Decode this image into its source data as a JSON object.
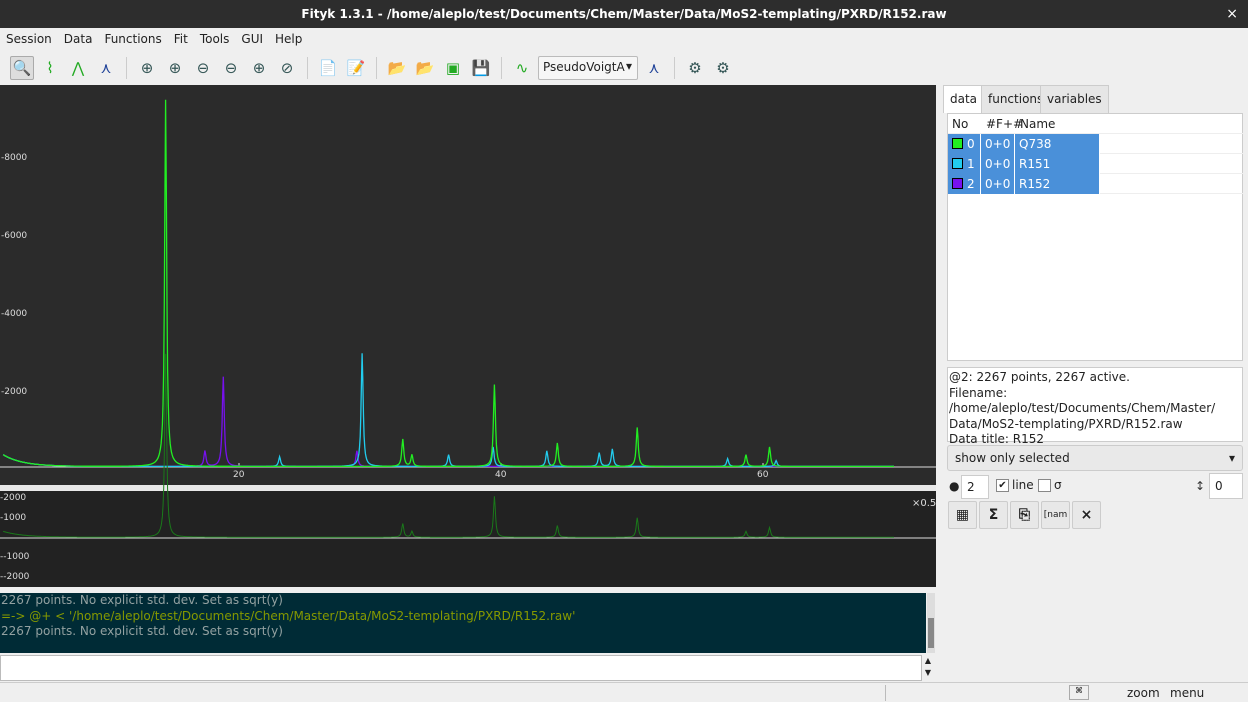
{
  "window": {
    "title": "Fityk 1.3.1 - /home/aleplo/test/Documents/Chem/Master/Data/MoS2-templating/PXRD/R152.raw",
    "close": "×"
  },
  "menu": [
    "Session",
    "Data",
    "Functions",
    "Fit",
    "Tools",
    "GUI",
    "Help"
  ],
  "toolbar": {
    "function_type": "PseudoVoigtA",
    "icons": [
      "zoom-mode",
      "range-mode",
      "add-peak-mode",
      "background-mode",
      "zoom-all",
      "zoom-vertical",
      "zoom-back",
      "zoom-forward",
      "zoom-fit",
      "zoom-prev",
      "script-edit",
      "edit-init",
      "open-data",
      "load-data",
      "save-data",
      "export-plot",
      "auto-add",
      "add-peak",
      "run-fit",
      "run-fit-cont"
    ]
  },
  "plot": {
    "scale_label": "×0.5",
    "main_y_ticks": [
      "8000",
      "6000",
      "4000",
      "2000"
    ],
    "x_ticks": [
      "20",
      "40",
      "60"
    ],
    "resid_y_ticks": [
      "2000",
      "1000",
      "-1000",
      "-2000"
    ]
  },
  "chart_data": {
    "type": "line",
    "xlim": [
      0,
      72
    ],
    "ylim": [
      0,
      10000
    ],
    "series": [
      {
        "name": "Q738",
        "color": "#22ee22",
        "peaks": [
          [
            14.4,
            9400
          ],
          [
            32.5,
            700
          ],
          [
            33.2,
            300
          ],
          [
            39.5,
            2100
          ],
          [
            44.3,
            600
          ],
          [
            50.4,
            1000
          ],
          [
            58.7,
            300
          ],
          [
            60.5,
            500
          ]
        ]
      },
      {
        "name": "R151",
        "color": "#22ccee",
        "peaks": [
          [
            23.1,
            250
          ],
          [
            29.4,
            2900
          ],
          [
            36.0,
            300
          ],
          [
            39.4,
            500
          ],
          [
            43.5,
            400
          ],
          [
            47.5,
            350
          ],
          [
            48.5,
            450
          ],
          [
            57.3,
            200
          ],
          [
            61.0,
            150
          ]
        ]
      },
      {
        "name": "R152",
        "color": "#7711ee",
        "peaks": [
          [
            17.4,
            400
          ],
          [
            18.8,
            2300
          ],
          [
            29.0,
            400
          ]
        ]
      }
    ]
  },
  "panel": {
    "tabs": [
      "data",
      "functions",
      "variables"
    ],
    "columns": [
      "No",
      "#F+#",
      "Name"
    ],
    "rows": [
      {
        "no": "0",
        "f": "0+0",
        "name": "Q738",
        "color": "#22ee22"
      },
      {
        "no": "1",
        "f": "0+0",
        "name": "R151",
        "color": "#22ccee"
      },
      {
        "no": "2",
        "f": "0+0",
        "name": "R152",
        "color": "#7711ee"
      }
    ],
    "info": [
      "@2: 2267 points, 2267 active.",
      "Filename: /home/aleplo/test/Documents/Chem/Master/",
      "Data/MoS2-templating/PXRD/R152.raw",
      "Data title: R152"
    ],
    "show_mode": "show only selected",
    "point_size": "2",
    "line_label": "line",
    "sigma_label": "σ",
    "offset": "0",
    "buttons": [
      "Σ",
      "×"
    ]
  },
  "console": [
    "2267 points. No explicit std. dev. Set as sqrt(y)",
    "=-> @+ < '/home/aleplo/test/Documents/Chem/Master/Data/MoS2-templating/PXRD/R152.raw'",
    "2267 points. No explicit std. dev. Set as sqrt(y)"
  ],
  "status": {
    "mouse_hint": "zoom",
    "menu_hint": "menu"
  }
}
